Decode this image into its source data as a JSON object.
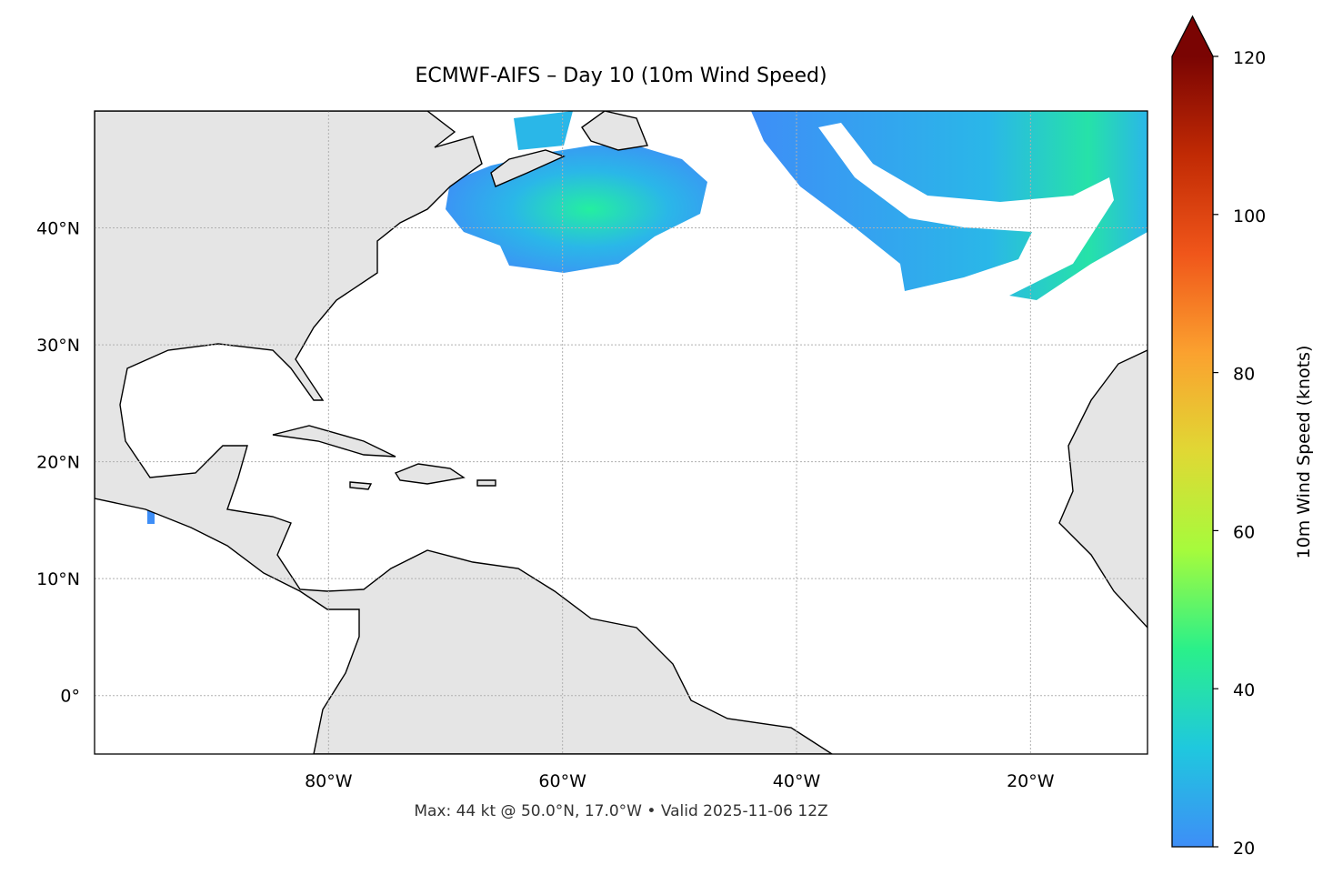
{
  "title": "ECMWF-AIFS – Day 10 (10m Wind Speed)",
  "map": {
    "lon_range": [
      -100,
      -10
    ],
    "lat_range": [
      -5,
      50
    ],
    "xticks": [
      {
        "value": -80,
        "label": "80°W"
      },
      {
        "value": -60,
        "label": "60°W"
      },
      {
        "value": -40,
        "label": "40°W"
      },
      {
        "value": -20,
        "label": "20°W"
      }
    ],
    "yticks": [
      {
        "value": 0,
        "label": "0°"
      },
      {
        "value": 10,
        "label": "10°N"
      },
      {
        "value": 20,
        "label": "20°N"
      },
      {
        "value": 30,
        "label": "30°N"
      },
      {
        "value": 40,
        "label": "40°N"
      }
    ],
    "grid": true
  },
  "colorbar": {
    "label": "10m Wind Speed (knots)",
    "range": [
      20,
      120
    ],
    "ticks": [
      20,
      40,
      60,
      80,
      100,
      120
    ],
    "extend": "max",
    "colors": [
      "#3e8ef7",
      "#1fc8de",
      "#2af08a",
      "#a6fb3c",
      "#e0d834",
      "#fba12f",
      "#f0561a",
      "#c12a04",
      "#7a0403"
    ]
  },
  "footer": "Max: 44 kt @ 50.0°N, 17.0°W • Valid 2025-11-06 12Z"
}
